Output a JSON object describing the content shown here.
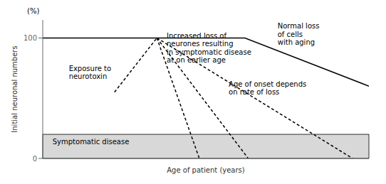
{
  "chart_data": {
    "type": "line",
    "xlabel": "Age of patient (years)",
    "ylabel": "Initial neuronal numbers",
    "xlim": [
      0,
      100
    ],
    "ylim": [
      0,
      115
    ],
    "xticks": [],
    "yticks": [
      0,
      100
    ],
    "tick_labels": "y",
    "grid": false,
    "shaded_region": {
      "y_from": 0,
      "y_to": 20,
      "color": "#d8d8d8"
    },
    "series": [
      {
        "x": [
          0,
          62,
          100
        ],
        "values": [
          100,
          100,
          60
        ],
        "color": "#000000",
        "line_style": "solid"
      },
      {
        "x": [
          22,
          35
        ],
        "values": [
          55,
          100
        ],
        "color": "#000000",
        "line_style": "dashed"
      },
      {
        "x": [
          35,
          48
        ],
        "values": [
          100,
          0
        ],
        "color": "#000000",
        "line_style": "dashed"
      },
      {
        "x": [
          35,
          63
        ],
        "values": [
          100,
          0
        ],
        "color": "#000000",
        "line_style": "dashed"
      },
      {
        "x": [
          35,
          95
        ],
        "values": [
          100,
          0
        ],
        "color": "#000000",
        "line_style": "dashed"
      }
    ],
    "annotations": [
      {
        "text": "(%)"
      },
      {
        "text": "Normal loss\nof cells\nwith aging",
        "x": 72,
        "y": 113
      },
      {
        "text": "Exposure to\nneurotoxin",
        "x": 8,
        "y": 78
      },
      {
        "text": "Increased loss of\nneurones resulting\nin symptomatic disease\nat on earlier age",
        "x": 38,
        "y": 105
      },
      {
        "text": "Age of onset depends\non rate of loss",
        "x": 57,
        "y": 65
      },
      {
        "text": "Symptomatic disease",
        "x": 3,
        "y": 17
      }
    ]
  }
}
